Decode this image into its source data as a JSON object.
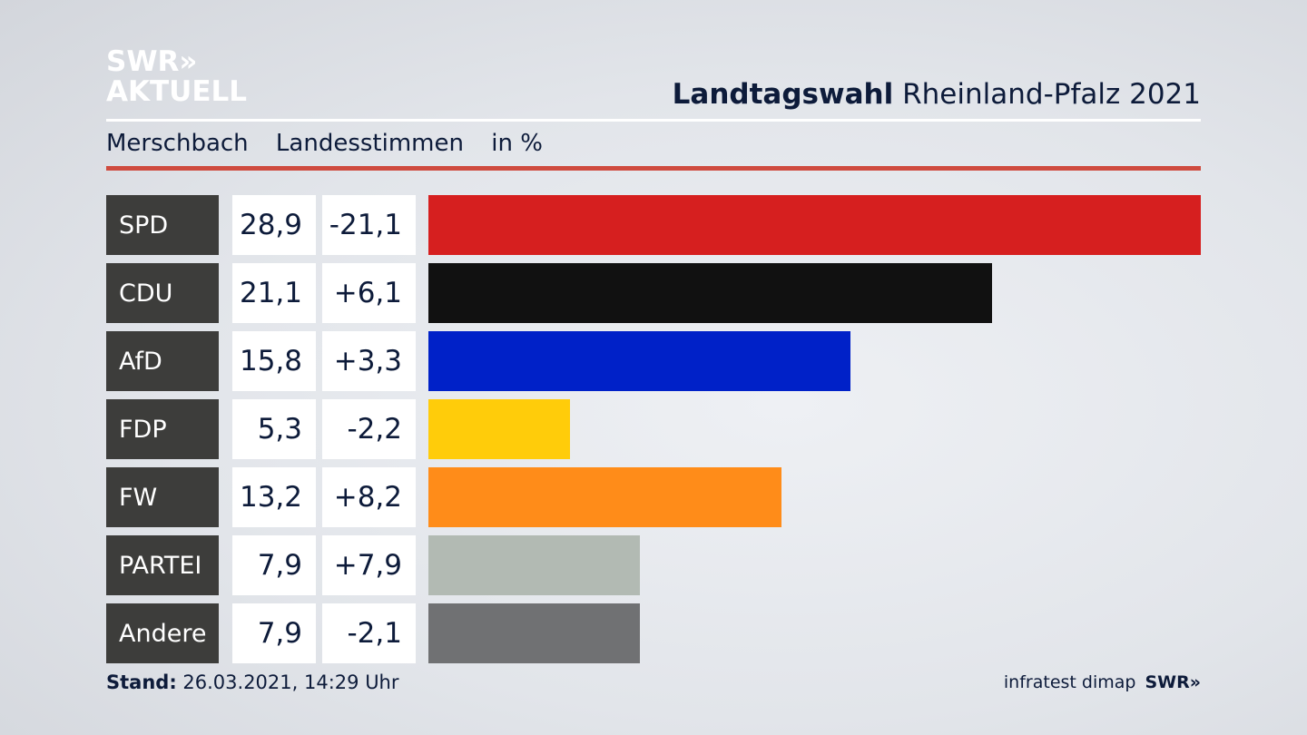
{
  "header": {
    "logo_line1": "SWR»",
    "logo_line2": "AKTUELL",
    "title_bold": "Landtagswahl",
    "title_rest": "Rheinland-Pfalz 2021",
    "subtitle_place": "Merschbach",
    "subtitle_type": "Landesstimmen",
    "subtitle_unit": "in %"
  },
  "footer": {
    "stand_label": "Stand:",
    "stand_value": "26.03.2021, 14:29 Uhr",
    "source": "infratest dimap",
    "brand": "SWR»"
  },
  "colors": {
    "accent_red_rule": "#cf4b3f"
  },
  "chart_data": {
    "type": "bar",
    "orientation": "horizontal",
    "categories": [
      "SPD",
      "CDU",
      "AfD",
      "FDP",
      "FW",
      "PARTEI",
      "Andere"
    ],
    "values": [
      28.9,
      21.1,
      15.8,
      5.3,
      13.2,
      7.9,
      7.9
    ],
    "value_labels": [
      "28,9",
      "21,1",
      "15,8",
      "5,3",
      "13,2",
      "7,9",
      "7,9"
    ],
    "changes": [
      -21.1,
      6.1,
      3.3,
      -2.2,
      8.2,
      7.9,
      -2.1
    ],
    "change_labels": [
      "-21,1",
      "+6,1",
      "+3,3",
      "-2,2",
      "+8,2",
      "+7,9",
      "-2,1"
    ],
    "bar_colors": [
      "#d61f1f",
      "#111111",
      "#0021c8",
      "#ffcc0a",
      "#ff8c19",
      "#b2bab3",
      "#707173"
    ],
    "xlim": [
      0,
      28.9
    ],
    "grid": false,
    "legend": "none"
  }
}
